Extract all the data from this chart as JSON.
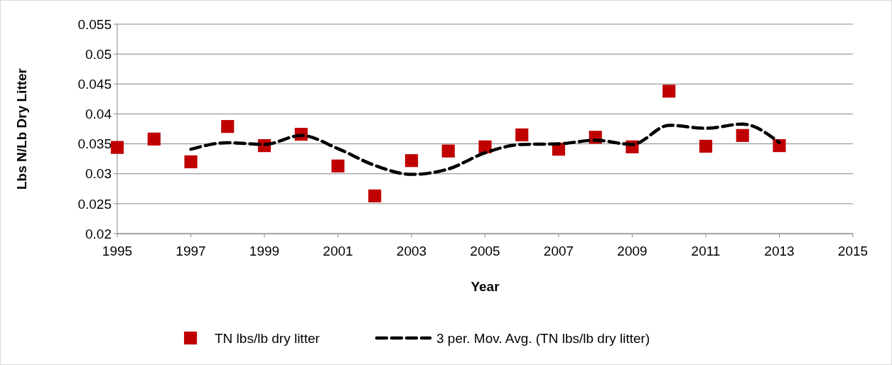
{
  "chart_data": {
    "type": "scatter",
    "xlabel": "Year",
    "ylabel": "Lbs N/Lb Dry Litter",
    "xlim": [
      1995,
      2015
    ],
    "xticks": [
      1995,
      1997,
      1999,
      2001,
      2003,
      2005,
      2007,
      2009,
      2011,
      2013,
      2015
    ],
    "ylim": [
      0.02,
      0.055
    ],
    "yticks": [
      0.02,
      0.025,
      0.03,
      0.035,
      0.04,
      0.045,
      0.05,
      0.055
    ],
    "grid": "y",
    "legend": "bottom",
    "series": [
      {
        "name": "TN lbs/lb dry litter",
        "type": "scatter",
        "marker": "square",
        "color": "#c00000",
        "x": [
          1995,
          1996,
          1997,
          1998,
          1999,
          2000,
          2001,
          2002,
          2003,
          2004,
          2005,
          2006,
          2007,
          2008,
          2009,
          2010,
          2011,
          2012,
          2013
        ],
        "values": [
          0.0344,
          0.0358,
          0.032,
          0.0379,
          0.0347,
          0.0366,
          0.0313,
          0.0263,
          0.0322,
          0.0338,
          0.0345,
          0.0365,
          0.0341,
          0.0361,
          0.0345,
          0.0438,
          0.0346,
          0.0364,
          0.0347
        ]
      },
      {
        "name": "3 per. Mov. Avg. (TN lbs/lb dry litter)",
        "type": "line",
        "line_style": "dashed",
        "color": "#000000",
        "x": [
          1997,
          1998,
          1999,
          2000,
          2001,
          2002,
          2003,
          2004,
          2005,
          2006,
          2007,
          2008,
          2009,
          2010,
          2011,
          2012,
          2013
        ],
        "values": [
          0.0341,
          0.0352,
          0.0349,
          0.0364,
          0.0342,
          0.0314,
          0.0299,
          0.0308,
          0.0335,
          0.0349,
          0.035,
          0.0356,
          0.0349,
          0.0381,
          0.0376,
          0.0383,
          0.0352
        ]
      }
    ]
  }
}
